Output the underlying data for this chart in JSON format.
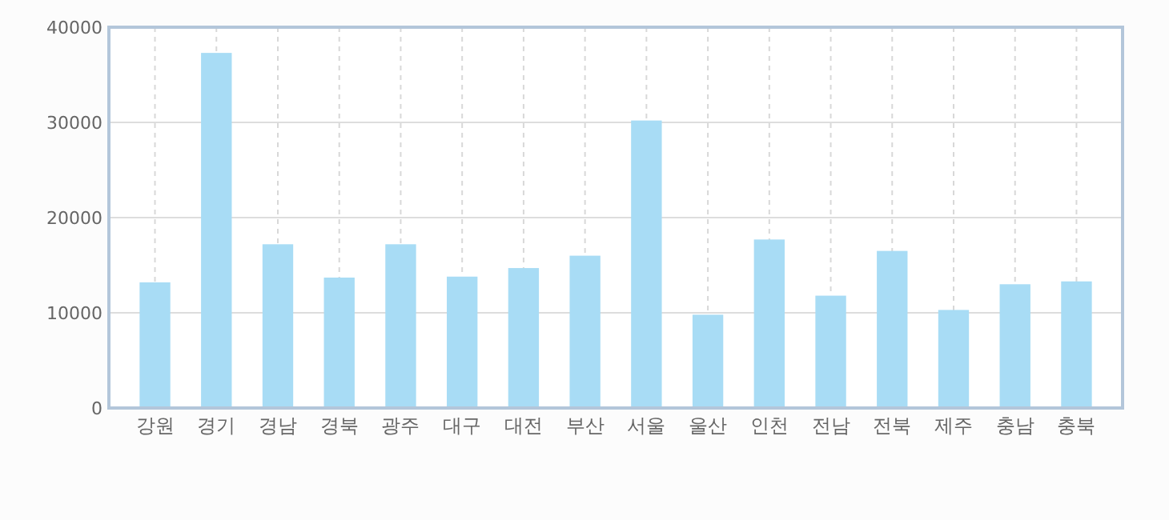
{
  "chart_data": {
    "type": "bar",
    "categories": [
      "강원",
      "경기",
      "경남",
      "경북",
      "광주",
      "대구",
      "대전",
      "부산",
      "서울",
      "울산",
      "인천",
      "전남",
      "전북",
      "제주",
      "충남",
      "충북"
    ],
    "values": [
      13200,
      37300,
      17200,
      13700,
      17200,
      13800,
      14700,
      16000,
      30200,
      9800,
      17700,
      11800,
      16500,
      10300,
      13000,
      13300
    ],
    "color": "#a8dcf5",
    "ylim": [
      0,
      40000
    ],
    "yticks": [
      0,
      10000,
      20000,
      30000,
      40000
    ],
    "grid": true
  }
}
